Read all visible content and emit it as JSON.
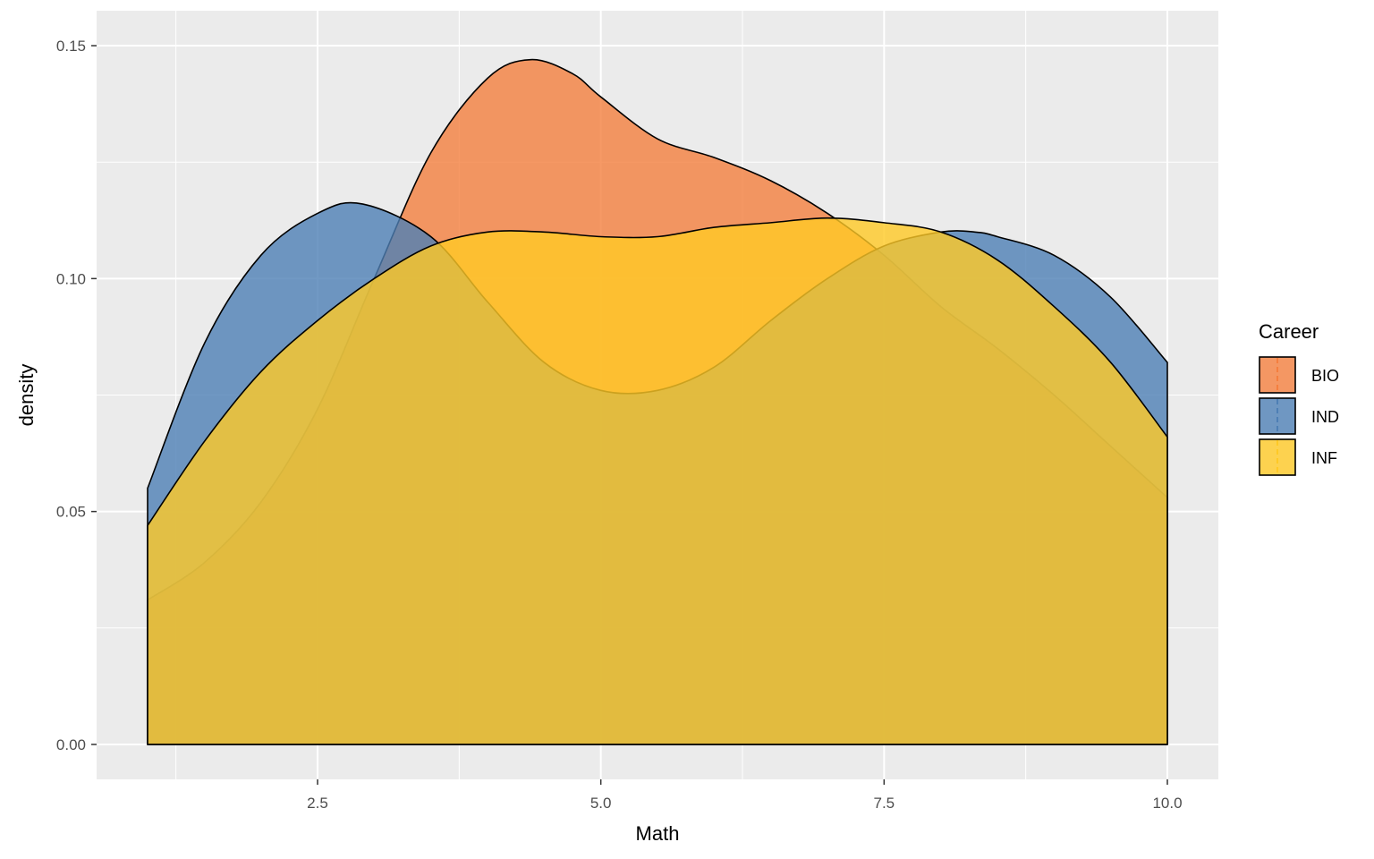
{
  "chart_data": {
    "type": "area",
    "xlabel": "Math",
    "ylabel": "density",
    "xlim": [
      0.55,
      10.45
    ],
    "ylim": [
      -0.0075,
      0.1575
    ],
    "x_ticks": [
      2.5,
      5.0,
      7.5,
      10.0
    ],
    "x_tick_labels": [
      "2.5",
      "5.0",
      "7.5",
      "10.0"
    ],
    "y_ticks": [
      0.0,
      0.05,
      0.1,
      0.15
    ],
    "y_tick_labels": [
      "0.00",
      "0.05",
      "0.10",
      "0.15"
    ],
    "grid": true,
    "panel_background": "#EBEBEB",
    "legend": {
      "title": "Career",
      "position": "right"
    },
    "series": [
      {
        "name": "BIO",
        "color": "#F47F3F",
        "x": [
          1.0,
          1.5,
          2.0,
          2.5,
          3.0,
          3.5,
          4.0,
          4.38,
          4.75,
          5.0,
          5.5,
          6.0,
          6.5,
          7.0,
          7.5,
          8.0,
          8.5,
          9.0,
          9.5,
          10.0
        ],
        "y": [
          0.031,
          0.039,
          0.052,
          0.072,
          0.1,
          0.127,
          0.143,
          0.147,
          0.144,
          0.139,
          0.13,
          0.126,
          0.121,
          0.114,
          0.105,
          0.094,
          0.085,
          0.075,
          0.064,
          0.053
        ]
      },
      {
        "name": "IND",
        "color": "#4E7FB5",
        "x": [
          1.0,
          1.5,
          2.0,
          2.5,
          2.9,
          3.5,
          4.0,
          4.5,
          5.0,
          5.5,
          6.0,
          6.5,
          7.0,
          7.5,
          8.0,
          8.3,
          8.5,
          9.0,
          9.5,
          10.0
        ],
        "y": [
          0.055,
          0.086,
          0.105,
          0.114,
          0.116,
          0.109,
          0.095,
          0.082,
          0.076,
          0.076,
          0.081,
          0.091,
          0.1,
          0.107,
          0.11,
          0.11,
          0.109,
          0.105,
          0.096,
          0.082
        ]
      },
      {
        "name": "INF",
        "color": "#FFC926",
        "x": [
          1.0,
          1.5,
          2.0,
          2.5,
          3.0,
          3.5,
          4.0,
          4.5,
          5.0,
          5.5,
          6.0,
          6.5,
          7.0,
          7.5,
          8.0,
          8.5,
          9.0,
          9.5,
          10.0
        ],
        "y": [
          0.047,
          0.065,
          0.08,
          0.091,
          0.1,
          0.107,
          0.11,
          0.11,
          0.109,
          0.109,
          0.111,
          0.112,
          0.113,
          0.112,
          0.11,
          0.104,
          0.094,
          0.082,
          0.066
        ]
      }
    ]
  }
}
